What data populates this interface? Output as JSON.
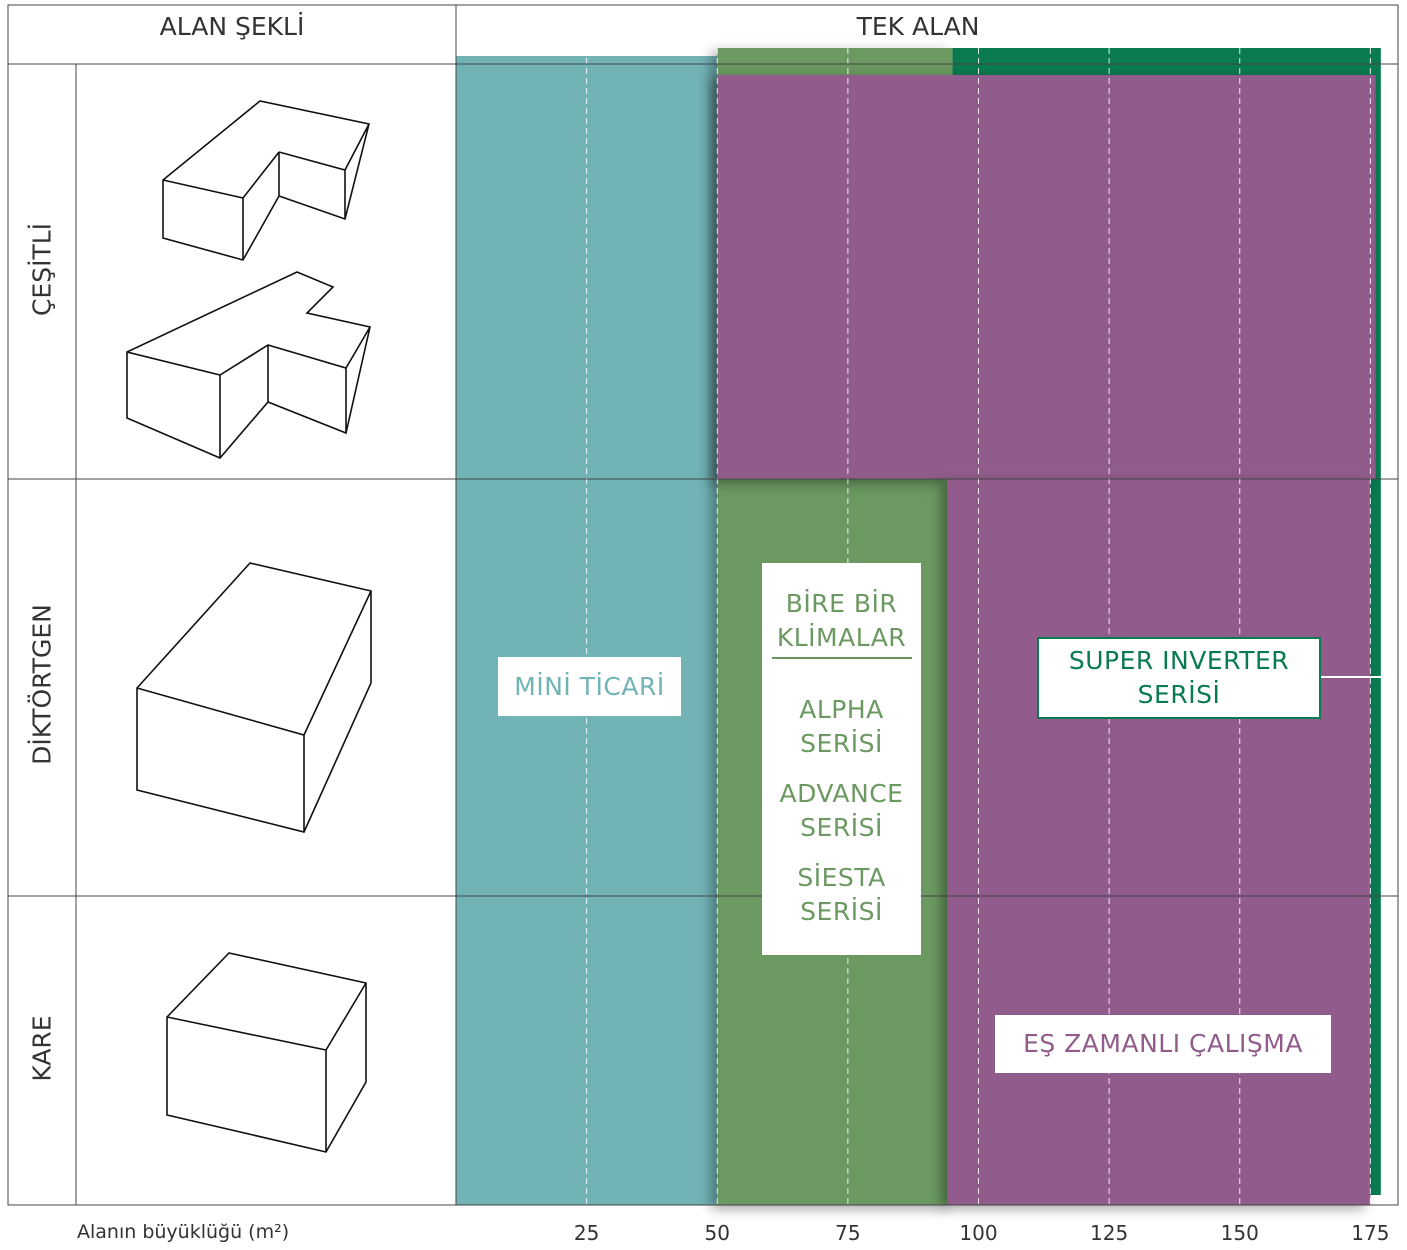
{
  "header": {
    "shape_column": "ALAN ŞEKLİ",
    "area_column": "TEK ALAN"
  },
  "rows": [
    "ÇEŞİTLİ",
    "DİKTÖRTGEN",
    "KARE"
  ],
  "axis": {
    "label": "Alanın büyüklüğü (m²)",
    "ticks": [
      25,
      50,
      75,
      100,
      125,
      150,
      175
    ]
  },
  "groups": [
    {
      "name": "MİNİ TİCARİ",
      "color": "#72b3b5",
      "range": [
        0,
        50
      ]
    },
    {
      "name": "SUPER INVERTER SERİSİ",
      "color": "#0a7a50",
      "range": [
        95,
        177
      ]
    },
    {
      "name": "BİRE BİR KLİMALAR",
      "color": "#6b9961",
      "range": [
        50,
        95
      ],
      "items": [
        "ALPHA SERİSİ",
        "ADVANCE SERİSİ",
        "SİESTA SERİSİ"
      ]
    },
    {
      "name": "EŞ ZAMANLI ÇALIŞMA",
      "color": "#915c8c",
      "range": [
        50,
        176
      ],
      "lower_range": [
        94,
        175
      ]
    }
  ]
}
